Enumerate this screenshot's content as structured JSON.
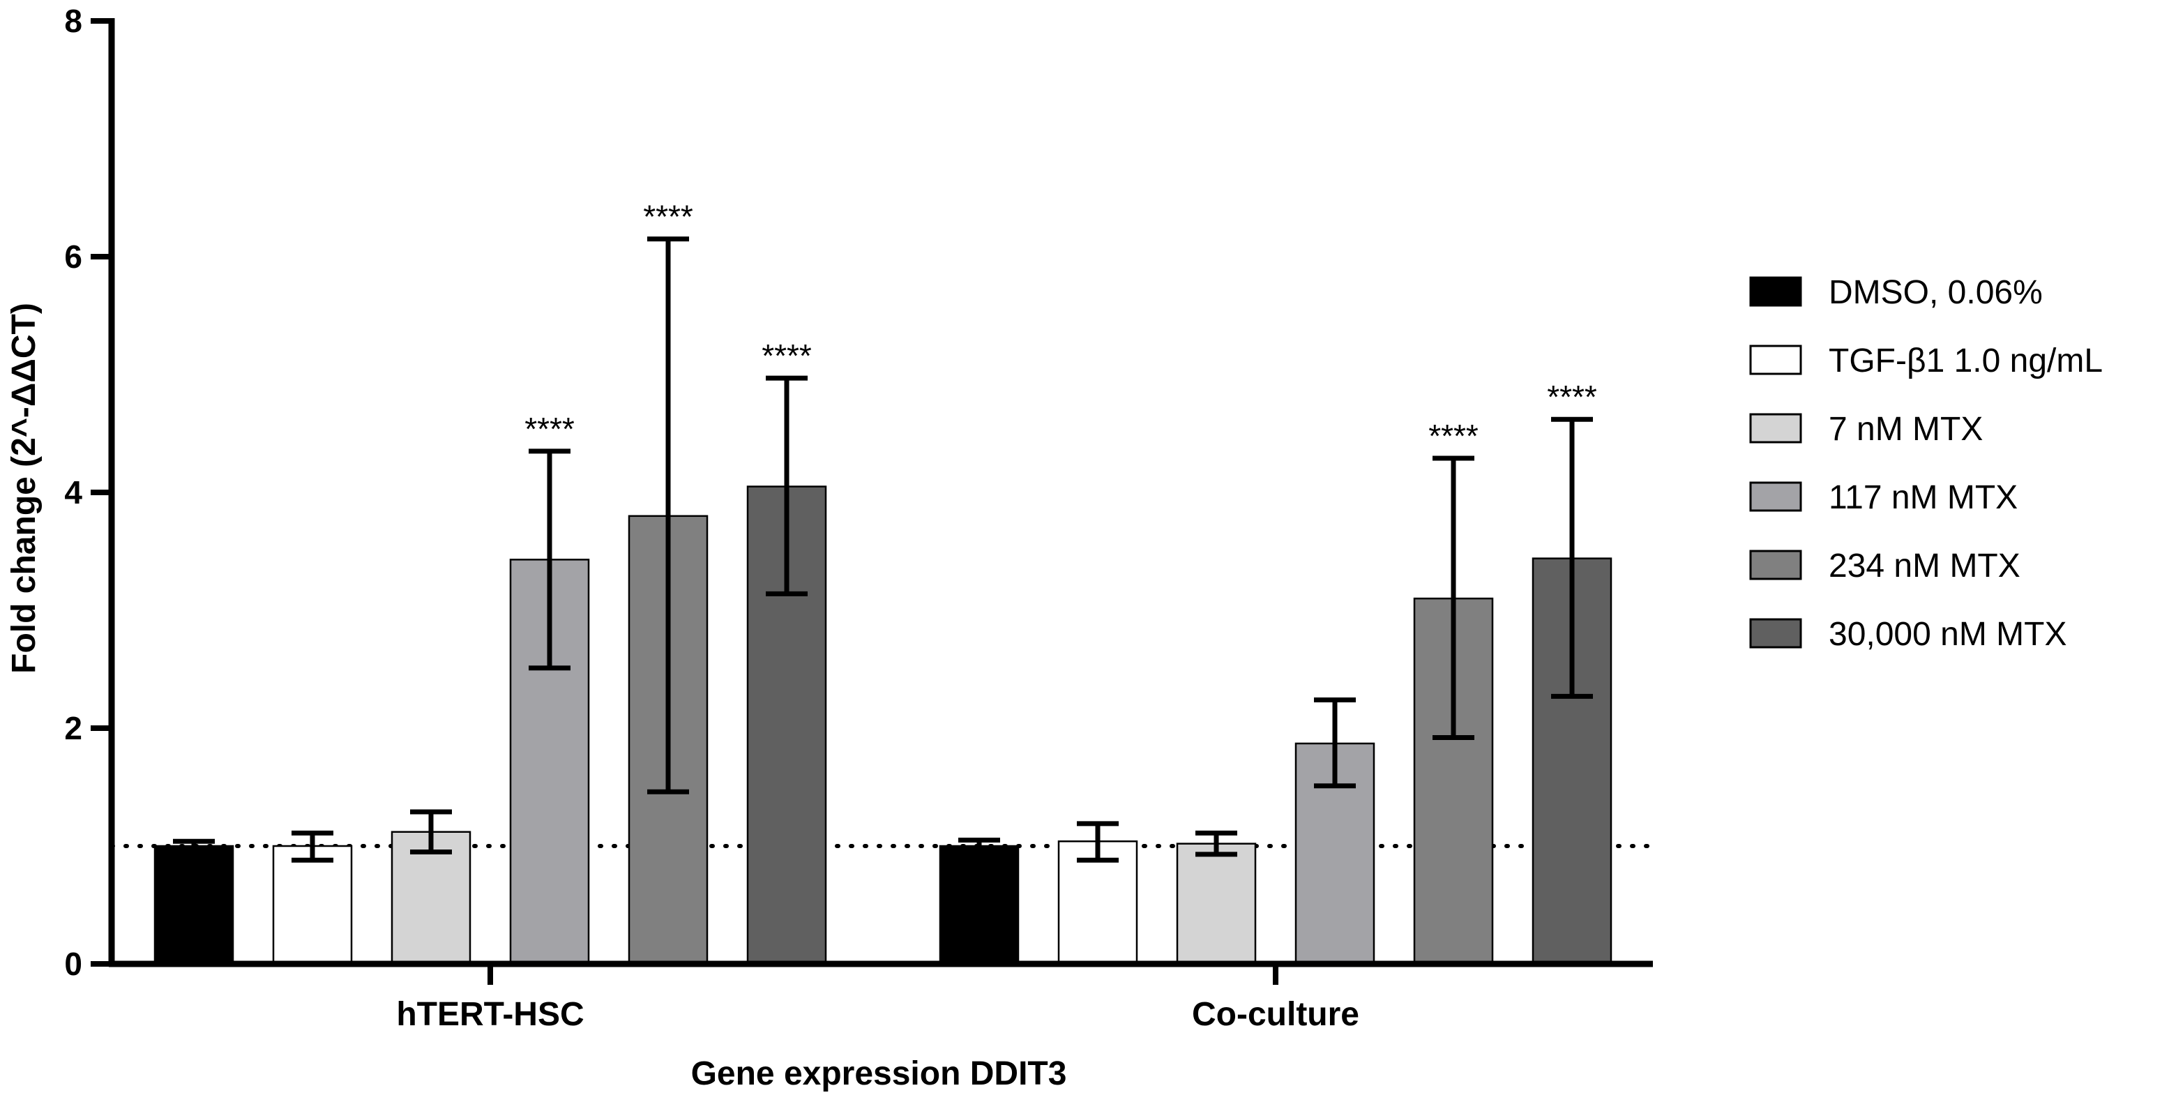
{
  "chart_data": {
    "type": "bar",
    "title": "",
    "xlabel": "Gene expression DDIT3",
    "ylabel": "Fold change (2^-ΔΔCT)",
    "ylim": [
      0,
      8
    ],
    "yticks": [
      0,
      2,
      4,
      6,
      8
    ],
    "reference_line": 1,
    "categories": [
      "hTERT-HSC",
      "Co-culture"
    ],
    "series": [
      {
        "name": "DMSO, 0.06%",
        "color": "#000000",
        "values": [
          1.0,
          1.0
        ],
        "err_low": [
          0.96,
          0.95
        ],
        "err_high": [
          1.04,
          1.05
        ],
        "sig": [
          "",
          ""
        ]
      },
      {
        "name": "TGF-β1 1.0 ng/mL",
        "color": "#ffffff",
        "values": [
          1.0,
          1.04
        ],
        "err_low": [
          0.88,
          0.88
        ],
        "err_high": [
          1.11,
          1.19
        ],
        "sig": [
          "",
          ""
        ]
      },
      {
        "name": "7 nM MTX",
        "color": "#d4d4d4",
        "values": [
          1.12,
          1.02
        ],
        "err_low": [
          0.95,
          0.93
        ],
        "err_high": [
          1.29,
          1.11
        ],
        "sig": [
          "",
          ""
        ]
      },
      {
        "name": "117 nM MTX",
        "color": "#a3a3a7",
        "values": [
          3.43,
          1.87
        ],
        "err_low": [
          2.51,
          1.51
        ],
        "err_high": [
          4.35,
          2.24
        ],
        "sig": [
          "****",
          ""
        ]
      },
      {
        "name": "234 nM MTX",
        "color": "#808080",
        "values": [
          3.8,
          3.1
        ],
        "err_low": [
          1.46,
          1.92
        ],
        "err_high": [
          6.15,
          4.29
        ],
        "sig": [
          "****",
          "****"
        ]
      },
      {
        "name": "30,000 nM MTX",
        "color": "#606060",
        "values": [
          4.05,
          3.44
        ],
        "err_low": [
          3.14,
          2.27
        ],
        "err_high": [
          4.97,
          4.62
        ],
        "sig": [
          "****",
          "****"
        ]
      }
    ]
  }
}
